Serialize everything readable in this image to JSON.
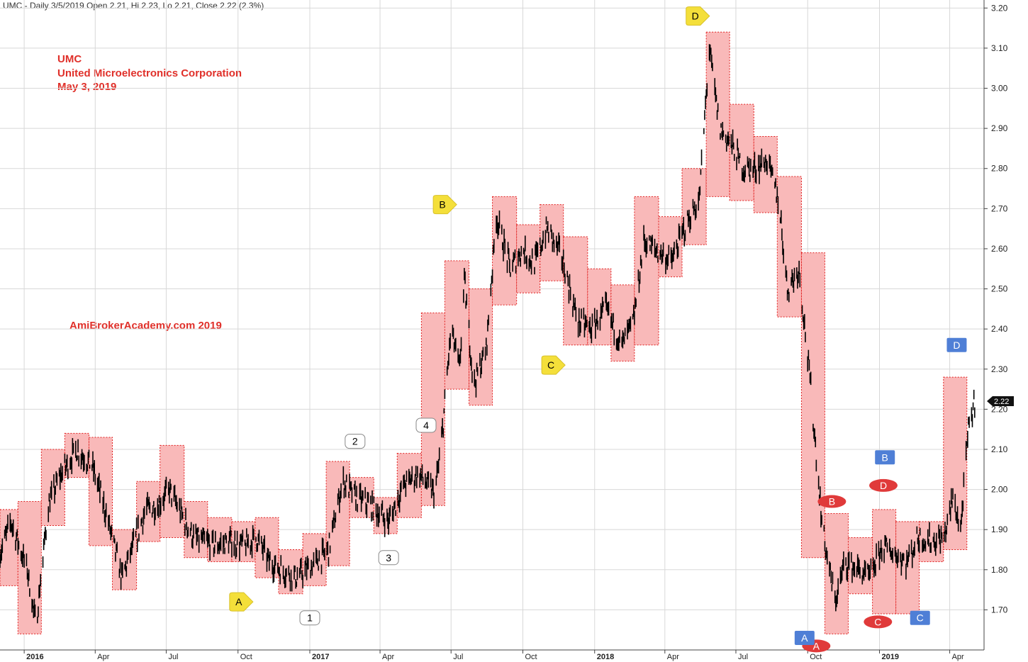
{
  "header": {
    "info": "UMC - Daily 3/5/2019 Open 2.21, Hi 2.23, Lo 2.21, Close 2.22 (2.3%)"
  },
  "titles": {
    "line1": "UMC",
    "line2": "United Microelectronics Corporation",
    "line3": "May 3, 2019"
  },
  "watermark": "AmiBrokerAcademy.com  2019",
  "colors": {
    "box_fill": "#f9b9b9",
    "box_border": "#e02020",
    "yellow_marker": "#f4df3a",
    "red_marker": "#e03a3a",
    "blue_marker": "#4f7fd6",
    "last_price_bg": "#111111"
  },
  "chart_data": {
    "type": "candlestick",
    "ylim": [
      1.6,
      3.22
    ],
    "yticks": [
      1.7,
      1.8,
      1.9,
      2.0,
      2.1,
      2.2,
      2.3,
      2.4,
      2.5,
      2.6,
      2.7,
      2.8,
      2.9,
      3.0,
      3.1,
      3.2
    ],
    "xlim": [
      "2015-12-01",
      "2019-05-15"
    ],
    "xticks": [
      {
        "date": "2016-01-01",
        "label": "2016",
        "year": true
      },
      {
        "date": "2016-04-01",
        "label": "Apr"
      },
      {
        "date": "2016-07-01",
        "label": "Jul"
      },
      {
        "date": "2016-10-01",
        "label": "Oct"
      },
      {
        "date": "2017-01-01",
        "label": "2017",
        "year": true
      },
      {
        "date": "2017-04-01",
        "label": "Apr"
      },
      {
        "date": "2017-07-01",
        "label": "Jul"
      },
      {
        "date": "2017-10-01",
        "label": "Oct"
      },
      {
        "date": "2018-01-01",
        "label": "2018",
        "year": true
      },
      {
        "date": "2018-04-01",
        "label": "Apr"
      },
      {
        "date": "2018-07-01",
        "label": "Jul"
      },
      {
        "date": "2018-10-01",
        "label": "Oct"
      },
      {
        "date": "2019-01-01",
        "label": "2019",
        "year": true
      },
      {
        "date": "2019-04-01",
        "label": "Apr"
      }
    ],
    "boxes": [
      {
        "start": "2015-12-01",
        "end": "2015-12-24",
        "high": 1.95,
        "low": 1.76
      },
      {
        "start": "2015-12-24",
        "end": "2016-01-23",
        "high": 1.97,
        "low": 1.64
      },
      {
        "start": "2016-01-23",
        "end": "2016-02-22",
        "high": 2.1,
        "low": 1.91
      },
      {
        "start": "2016-02-22",
        "end": "2016-03-24",
        "high": 2.14,
        "low": 2.03
      },
      {
        "start": "2016-03-24",
        "end": "2016-04-23",
        "high": 2.13,
        "low": 1.86
      },
      {
        "start": "2016-04-23",
        "end": "2016-05-24",
        "high": 1.9,
        "low": 1.75
      },
      {
        "start": "2016-05-24",
        "end": "2016-06-23",
        "high": 2.02,
        "low": 1.87
      },
      {
        "start": "2016-06-23",
        "end": "2016-07-24",
        "high": 2.11,
        "low": 1.88
      },
      {
        "start": "2016-07-24",
        "end": "2016-08-23",
        "high": 1.97,
        "low": 1.83
      },
      {
        "start": "2016-08-23",
        "end": "2016-09-23",
        "high": 1.93,
        "low": 1.82
      },
      {
        "start": "2016-09-23",
        "end": "2016-10-23",
        "high": 1.92,
        "low": 1.82
      },
      {
        "start": "2016-10-23",
        "end": "2016-11-22",
        "high": 1.93,
        "low": 1.78
      },
      {
        "start": "2016-11-22",
        "end": "2016-12-23",
        "high": 1.85,
        "low": 1.74
      },
      {
        "start": "2016-12-23",
        "end": "2017-01-22",
        "high": 1.89,
        "low": 1.76
      },
      {
        "start": "2017-01-22",
        "end": "2017-02-21",
        "high": 2.07,
        "low": 1.81
      },
      {
        "start": "2017-02-21",
        "end": "2017-03-24",
        "high": 2.03,
        "low": 1.93
      },
      {
        "start": "2017-03-24",
        "end": "2017-04-23",
        "high": 1.98,
        "low": 1.89
      },
      {
        "start": "2017-04-23",
        "end": "2017-05-24",
        "high": 2.09,
        "low": 1.93
      },
      {
        "start": "2017-05-24",
        "end": "2017-06-23",
        "high": 2.44,
        "low": 1.96
      },
      {
        "start": "2017-06-23",
        "end": "2017-07-24",
        "high": 2.57,
        "low": 2.25
      },
      {
        "start": "2017-07-24",
        "end": "2017-08-23",
        "high": 2.5,
        "low": 2.21
      },
      {
        "start": "2017-08-23",
        "end": "2017-09-23",
        "high": 2.73,
        "low": 2.46
      },
      {
        "start": "2017-09-23",
        "end": "2017-10-23",
        "high": 2.66,
        "low": 2.49
      },
      {
        "start": "2017-10-23",
        "end": "2017-11-22",
        "high": 2.71,
        "low": 2.52
      },
      {
        "start": "2017-11-22",
        "end": "2017-12-23",
        "high": 2.63,
        "low": 2.36
      },
      {
        "start": "2017-12-23",
        "end": "2018-01-22",
        "high": 2.55,
        "low": 2.36
      },
      {
        "start": "2018-01-22",
        "end": "2018-02-21",
        "high": 2.51,
        "low": 2.32
      },
      {
        "start": "2018-02-21",
        "end": "2018-03-24",
        "high": 2.73,
        "low": 2.36
      },
      {
        "start": "2018-03-24",
        "end": "2018-04-23",
        "high": 2.68,
        "low": 2.53
      },
      {
        "start": "2018-04-23",
        "end": "2018-05-24",
        "high": 2.8,
        "low": 2.61
      },
      {
        "start": "2018-05-24",
        "end": "2018-06-23",
        "high": 3.14,
        "low": 2.73
      },
      {
        "start": "2018-06-23",
        "end": "2018-07-24",
        "high": 2.96,
        "low": 2.72
      },
      {
        "start": "2018-07-24",
        "end": "2018-08-23",
        "high": 2.88,
        "low": 2.69
      },
      {
        "start": "2018-08-23",
        "end": "2018-09-23",
        "high": 2.78,
        "low": 2.43
      },
      {
        "start": "2018-09-23",
        "end": "2018-10-23",
        "high": 2.59,
        "low": 1.83
      },
      {
        "start": "2018-10-23",
        "end": "2018-11-22",
        "high": 1.94,
        "low": 1.64
      },
      {
        "start": "2018-11-22",
        "end": "2018-12-23",
        "high": 1.88,
        "low": 1.74
      },
      {
        "start": "2018-12-23",
        "end": "2019-01-22",
        "high": 1.95,
        "low": 1.69
      },
      {
        "start": "2019-01-22",
        "end": "2019-02-21",
        "high": 1.92,
        "low": 1.69
      },
      {
        "start": "2019-02-21",
        "end": "2019-03-24",
        "high": 1.92,
        "low": 1.82
      },
      {
        "start": "2019-03-24",
        "end": "2019-04-23",
        "high": 2.28,
        "low": 1.85
      }
    ],
    "anchors": [
      [
        "2015-12-01",
        1.84
      ],
      [
        "2015-12-15",
        1.92
      ],
      [
        "2016-01-05",
        1.8
      ],
      [
        "2016-01-16",
        1.66
      ],
      [
        "2016-02-01",
        1.96
      ],
      [
        "2016-02-15",
        2.03
      ],
      [
        "2016-03-08",
        2.1
      ],
      [
        "2016-03-28",
        2.06
      ],
      [
        "2016-04-15",
        1.94
      ],
      [
        "2016-05-05",
        1.78
      ],
      [
        "2016-05-18",
        1.85
      ],
      [
        "2016-06-05",
        1.95
      ],
      [
        "2016-06-20",
        1.96
      ],
      [
        "2016-07-05",
        2.0
      ],
      [
        "2016-07-20",
        1.94
      ],
      [
        "2016-08-05",
        1.88
      ],
      [
        "2016-09-01",
        1.86
      ],
      [
        "2016-09-20",
        1.87
      ],
      [
        "2016-10-10",
        1.86
      ],
      [
        "2016-10-25",
        1.88
      ],
      [
        "2016-11-10",
        1.82
      ],
      [
        "2016-11-25",
        1.8
      ],
      [
        "2016-12-15",
        1.78
      ],
      [
        "2017-01-10",
        1.82
      ],
      [
        "2017-01-25",
        1.85
      ],
      [
        "2017-02-12",
        2.02
      ],
      [
        "2017-03-01",
        1.98
      ],
      [
        "2017-03-20",
        1.96
      ],
      [
        "2017-04-12",
        1.92
      ],
      [
        "2017-05-01",
        2.01
      ],
      [
        "2017-05-20",
        2.04
      ],
      [
        "2017-06-10",
        1.99
      ],
      [
        "2017-06-18",
        2.1
      ],
      [
        "2017-07-01",
        2.4
      ],
      [
        "2017-07-12",
        2.3
      ],
      [
        "2017-07-18",
        2.52
      ],
      [
        "2017-07-30",
        2.26
      ],
      [
        "2017-08-15",
        2.35
      ],
      [
        "2017-08-28",
        2.68
      ],
      [
        "2017-09-15",
        2.55
      ],
      [
        "2017-10-01",
        2.6
      ],
      [
        "2017-10-15",
        2.56
      ],
      [
        "2017-11-01",
        2.65
      ],
      [
        "2017-11-20",
        2.58
      ],
      [
        "2017-12-10",
        2.42
      ],
      [
        "2017-12-28",
        2.4
      ],
      [
        "2018-01-15",
        2.45
      ],
      [
        "2018-02-05",
        2.36
      ],
      [
        "2018-02-20",
        2.42
      ],
      [
        "2018-03-05",
        2.62
      ],
      [
        "2018-03-25",
        2.59
      ],
      [
        "2018-04-10",
        2.57
      ],
      [
        "2018-04-28",
        2.66
      ],
      [
        "2018-05-15",
        2.72
      ],
      [
        "2018-05-28",
        3.1
      ],
      [
        "2018-06-10",
        2.9
      ],
      [
        "2018-06-25",
        2.86
      ],
      [
        "2018-07-10",
        2.8
      ],
      [
        "2018-07-25",
        2.8
      ],
      [
        "2018-08-10",
        2.82
      ],
      [
        "2018-08-25",
        2.72
      ],
      [
        "2018-09-05",
        2.5
      ],
      [
        "2018-09-20",
        2.55
      ],
      [
        "2018-10-05",
        2.25
      ],
      [
        "2018-10-20",
        1.9
      ],
      [
        "2018-11-05",
        1.72
      ],
      [
        "2018-11-18",
        1.82
      ],
      [
        "2018-12-05",
        1.8
      ],
      [
        "2018-12-20",
        1.78
      ],
      [
        "2019-01-05",
        1.86
      ],
      [
        "2019-01-20",
        1.84
      ],
      [
        "2019-02-05",
        1.82
      ],
      [
        "2019-02-20",
        1.88
      ],
      [
        "2019-03-10",
        1.87
      ],
      [
        "2019-03-25",
        1.88
      ],
      [
        "2019-04-05",
        1.98
      ],
      [
        "2019-04-15",
        1.9
      ],
      [
        "2019-04-25",
        2.15
      ],
      [
        "2019-05-03",
        2.22
      ]
    ],
    "last_price": 2.22,
    "markers": [
      {
        "label": "A",
        "shape": "yellow-tag",
        "date": "2016-10-02",
        "price": 1.72
      },
      {
        "label": "B",
        "shape": "yellow-tag",
        "date": "2017-06-20",
        "price": 2.71
      },
      {
        "label": "C",
        "shape": "yellow-tag",
        "date": "2017-11-06",
        "price": 2.31
      },
      {
        "label": "D",
        "shape": "yellow-tag",
        "date": "2018-05-10",
        "price": 3.18
      },
      {
        "label": "1",
        "shape": "white-box",
        "date": "2017-01-01",
        "price": 1.68
      },
      {
        "label": "2",
        "shape": "white-box",
        "date": "2017-02-28",
        "price": 2.12
      },
      {
        "label": "3",
        "shape": "white-box",
        "date": "2017-04-12",
        "price": 1.83
      },
      {
        "label": "4",
        "shape": "white-box",
        "date": "2017-05-30",
        "price": 2.16
      },
      {
        "label": "A",
        "shape": "red-oval",
        "date": "2018-10-12",
        "price": 1.61
      },
      {
        "label": "B",
        "shape": "red-oval",
        "date": "2018-11-01",
        "price": 1.97
      },
      {
        "label": "C",
        "shape": "red-oval",
        "date": "2018-12-30",
        "price": 1.67
      },
      {
        "label": "D",
        "shape": "red-oval",
        "date": "2019-01-06",
        "price": 2.01
      },
      {
        "label": "A",
        "shape": "blue-box",
        "date": "2018-09-27",
        "price": 1.63
      },
      {
        "label": "B",
        "shape": "blue-box",
        "date": "2019-01-08",
        "price": 2.08
      },
      {
        "label": "C",
        "shape": "blue-box",
        "date": "2019-02-22",
        "price": 1.68
      },
      {
        "label": "D",
        "shape": "blue-box",
        "date": "2019-04-10",
        "price": 2.36
      }
    ]
  }
}
